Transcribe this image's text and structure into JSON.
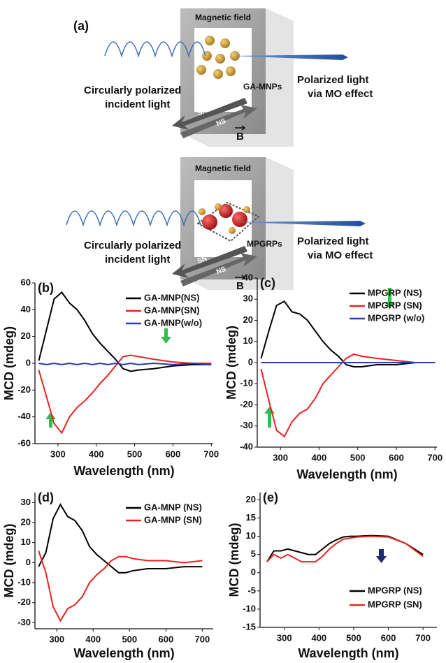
{
  "diagram": {
    "panel": "(a)",
    "top": {
      "field": "Magnetic field",
      "sample": "GA-MNPs",
      "incident": [
        "Circularly polarized",
        "incident light"
      ],
      "output": [
        "Polarized light",
        "via MO effect"
      ],
      "arrows": [
        "SN",
        "NS"
      ],
      "b": "B"
    },
    "bottom": {
      "field": "Magnetic field",
      "sample": "MPGRPs",
      "incident": [
        "Circularly polarized",
        "incident light"
      ],
      "output": [
        "Polarized light",
        "via MO effect"
      ],
      "arrows": [
        "SN",
        "NS"
      ],
      "b": "B"
    }
  },
  "chart_data": [
    {
      "type": "line",
      "panel": "(b)",
      "xlabel": "Wavelength (nm)",
      "ylabel": "MCD (mdeg)",
      "legend": "upper right",
      "xlim": [
        240,
        705
      ],
      "xticks": [
        300,
        400,
        500,
        600,
        700
      ],
      "ylim": [
        -60,
        60
      ],
      "yticks": [
        -60,
        -40,
        -20,
        0,
        20,
        40,
        60
      ],
      "x": [
        250,
        270,
        290,
        310,
        330,
        350,
        370,
        390,
        410,
        430,
        450,
        470,
        490,
        510,
        550,
        600,
        650,
        700
      ],
      "series": [
        {
          "name": "GA-MNP(NS)",
          "color": "#000000",
          "values": [
            2,
            25,
            48,
            53,
            45,
            40,
            32,
            22,
            15,
            9,
            3,
            -4,
            -6,
            -5,
            -4,
            -2,
            -1,
            -1
          ]
        },
        {
          "name": "GA-MNP(SN)",
          "color": "#e8231f",
          "values": [
            -5,
            -25,
            -45,
            -52,
            -40,
            -33,
            -28,
            -22,
            -15,
            -9,
            -2,
            5,
            6,
            5,
            3,
            1,
            0,
            0
          ]
        },
        {
          "name": "GA-MNP(w/o)",
          "color": "#2b3fa8",
          "values": [
            0,
            -1,
            0,
            -1,
            0,
            -1,
            0,
            -1,
            0,
            -1,
            0,
            -1,
            0,
            -1,
            0,
            -1,
            0,
            -1
          ]
        }
      ]
    },
    {
      "type": "line",
      "panel": "(c)",
      "xlabel": "Wavelength (nm)",
      "ylabel": "MCD (mdeg)",
      "legend": "upper right",
      "xlim": [
        240,
        705
      ],
      "xticks": [
        300,
        400,
        500,
        600,
        700
      ],
      "ylim": [
        -40,
        40
      ],
      "yticks": [
        -40,
        -30,
        -20,
        -10,
        0,
        10,
        20,
        30,
        40
      ],
      "x": [
        250,
        270,
        290,
        310,
        330,
        350,
        370,
        390,
        410,
        430,
        450,
        470,
        490,
        510,
        550,
        600,
        650,
        700
      ],
      "series": [
        {
          "name": "MPGRP (NS)",
          "color": "#000000",
          "values": [
            2,
            15,
            27,
            29,
            24,
            23,
            20,
            15,
            10,
            6,
            3,
            -1,
            -2,
            -2,
            -1,
            -1,
            0,
            0
          ]
        },
        {
          "name": "MPGRP (SN)",
          "color": "#e8231f",
          "values": [
            -3,
            -18,
            -32,
            -35,
            -28,
            -24,
            -22,
            -17,
            -10,
            -6,
            -2,
            2,
            4,
            3,
            2,
            1,
            0,
            0
          ]
        },
        {
          "name": "MPGRP (w/o)",
          "color": "#2b3fa8",
          "values": [
            0,
            0,
            0,
            0,
            0,
            0,
            0,
            0,
            0,
            0,
            0,
            0,
            0,
            0,
            0,
            0,
            0,
            0
          ]
        }
      ]
    },
    {
      "type": "line",
      "panel": "(d)",
      "xlabel": "Wavelength (nm)",
      "ylabel": "MCD (mdeg)",
      "legend": "upper right",
      "xlim": [
        240,
        730
      ],
      "xticks": [
        300,
        400,
        500,
        600,
        700
      ],
      "ylim": [
        -33,
        35
      ],
      "yticks": [
        -30,
        -20,
        -10,
        0,
        10,
        20,
        30
      ],
      "x": [
        250,
        270,
        290,
        310,
        330,
        350,
        370,
        390,
        410,
        430,
        450,
        470,
        490,
        510,
        550,
        600,
        650,
        700
      ],
      "series": [
        {
          "name": "GA-MNP (NS)",
          "color": "#000000",
          "values": [
            -2,
            5,
            22,
            29,
            23,
            21,
            16,
            8,
            4,
            1,
            -2,
            -5,
            -5,
            -4,
            -3,
            -3,
            -2,
            -2
          ]
        },
        {
          "name": "GA-MNP (SN)",
          "color": "#e8231f",
          "values": [
            6,
            -5,
            -22,
            -29,
            -23,
            -21,
            -17,
            -10,
            -6,
            -3,
            1,
            3,
            3,
            2,
            1,
            1,
            0,
            1
          ]
        }
      ]
    },
    {
      "type": "line",
      "panel": "(e)",
      "xlabel": "Wavelength (nm)",
      "ylabel": "MCD (mdeg)",
      "legend": "lower right",
      "xlim": [
        230,
        740
      ],
      "xticks": [
        300,
        400,
        500,
        600,
        700
      ],
      "ylim": [
        -15,
        22
      ],
      "yticks": [
        -15,
        -10,
        -5,
        0,
        5,
        10,
        15,
        20
      ],
      "x": [
        250,
        270,
        290,
        310,
        330,
        350,
        370,
        390,
        410,
        430,
        450,
        470,
        490,
        510,
        550,
        600,
        650,
        700
      ],
      "series": [
        {
          "name": "MPGRP (NS)",
          "color": "#000000",
          "values": [
            3,
            6,
            6,
            6.5,
            6,
            5.5,
            5,
            5,
            6.5,
            8,
            9,
            9.8,
            10,
            10,
            10.2,
            10,
            8,
            5
          ]
        },
        {
          "name": "MPGRP (SN)",
          "color": "#e8231f",
          "values": [
            3,
            5,
            4,
            5,
            4,
            3,
            3,
            3,
            4.5,
            6.5,
            8,
            9.2,
            9.5,
            9.8,
            10,
            9.8,
            8,
            4.5
          ]
        }
      ]
    }
  ]
}
